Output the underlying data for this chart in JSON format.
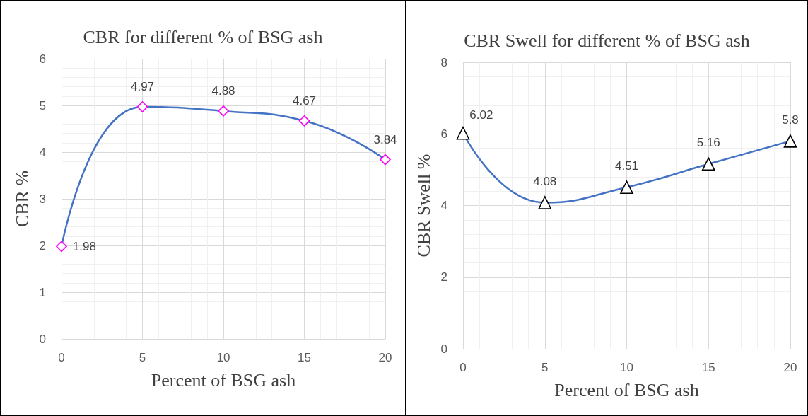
{
  "chart_data": [
    {
      "type": "line",
      "title": "CBR for different % of BSG ash",
      "xlabel": "Percent of BSG ash",
      "ylabel": "CBR %",
      "x": [
        0,
        5,
        10,
        15,
        20
      ],
      "series": [
        {
          "color": "#4472c4",
          "colors": [
            "#ff00ff",
            "#ff00ff",
            "#ff00ff",
            "#ff00ff",
            "#ff00ff"
          ],
          "values": [
            1.98,
            4.97,
            4.88,
            4.67,
            3.84
          ]
        }
      ],
      "xlim": [
        0,
        20
      ],
      "xticks": [
        0,
        5,
        10,
        15,
        20
      ],
      "ylim": [
        0,
        6
      ],
      "yticks": [
        0,
        1,
        2,
        3,
        4,
        5,
        6
      ],
      "grid": true,
      "marker": "diamond",
      "line_style": "solid",
      "data_labels": true
    },
    {
      "type": "line",
      "title": "CBR Swell for different % of BSG ash",
      "xlabel": "Percent of BSG ash",
      "ylabel": "CBR Swell %",
      "x": [
        0,
        5,
        10,
        15,
        20
      ],
      "series": [
        {
          "color": "#4472c4",
          "colors": [
            "#000000",
            "#000000",
            "#000000",
            "#000000",
            "#000000"
          ],
          "values": [
            6.02,
            4.08,
            4.51,
            5.16,
            5.8
          ]
        }
      ],
      "xlim": [
        0,
        20
      ],
      "xticks": [
        0,
        5,
        10,
        15,
        20
      ],
      "ylim": [
        0,
        8
      ],
      "yticks": [
        0,
        2,
        4,
        6,
        8
      ],
      "grid": true,
      "marker": "triangle",
      "line_style": "solid",
      "data_labels": true
    }
  ]
}
